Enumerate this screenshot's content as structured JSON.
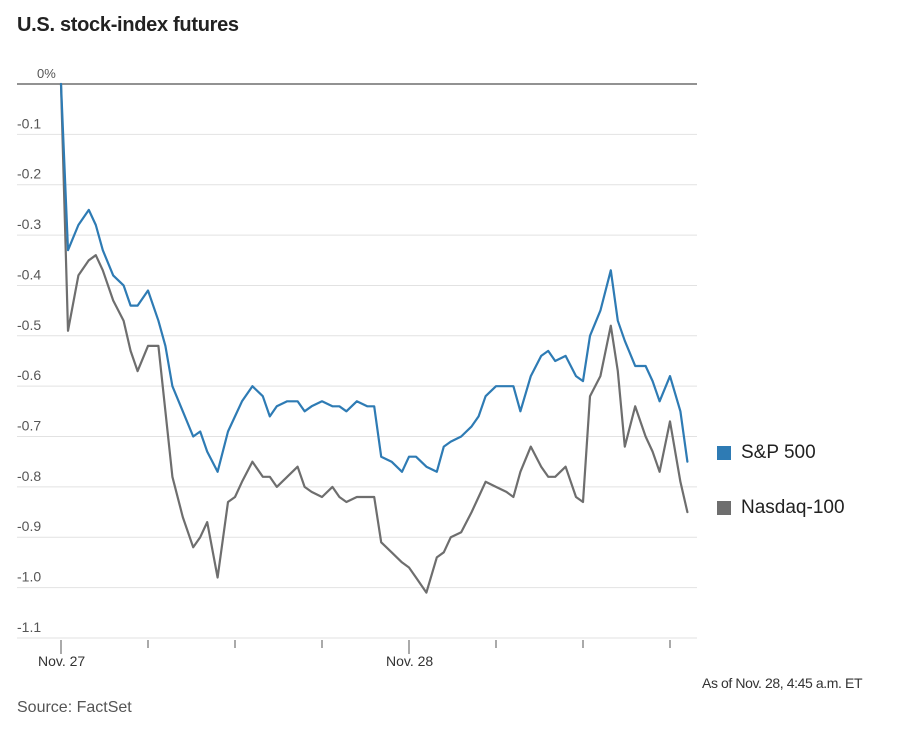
{
  "header": {
    "title": "U.S. stock-index futures"
  },
  "footer": {
    "as_of": "As of Nov. 28, 4:45 a.m. ET",
    "source": "Source: FactSet"
  },
  "chart_data": {
    "type": "line",
    "title": "U.S. stock-index futures",
    "xlabel": "",
    "ylabel": "",
    "ylim": [
      -1.1,
      0
    ],
    "y_ticks": [
      "0%",
      "-0.1",
      "-0.2",
      "-0.3",
      "-0.4",
      "-0.5",
      "-0.6",
      "-0.7",
      "-0.8",
      "-0.9",
      "-1.0",
      "-1.1"
    ],
    "x_ticks": [
      "Nov. 27",
      "Nov. 28"
    ],
    "grid": true,
    "legend_position": "right",
    "colors": {
      "sp500": "#2e7bb4",
      "nasdaq": "#6e6e6e",
      "zero_line": "#6e6e6e",
      "grid": "#e2e2e2"
    },
    "x": [
      0,
      0.02,
      0.05,
      0.08,
      0.1,
      0.12,
      0.15,
      0.18,
      0.2,
      0.22,
      0.25,
      0.28,
      0.3,
      0.32,
      0.35,
      0.38,
      0.4,
      0.42,
      0.45,
      0.48,
      0.5,
      0.52,
      0.55,
      0.58,
      0.6,
      0.62,
      0.65,
      0.68,
      0.7,
      0.72,
      0.75,
      0.78,
      0.8,
      0.82,
      0.85,
      0.88,
      0.9,
      0.92,
      0.95,
      0.98,
      1.0,
      1.02,
      1.05,
      1.08,
      1.1,
      1.12,
      1.15,
      1.18,
      1.2,
      1.22,
      1.25,
      1.28,
      1.3,
      1.32,
      1.35,
      1.38,
      1.4,
      1.42,
      1.45,
      1.48,
      1.5,
      1.52,
      1.55,
      1.58,
      1.6,
      1.62,
      1.65,
      1.68,
      1.7,
      1.72,
      1.75,
      1.78,
      1.8
    ],
    "series": [
      {
        "name": "S&P 500",
        "values": [
          0.0,
          -0.33,
          -0.28,
          -0.25,
          -0.28,
          -0.33,
          -0.38,
          -0.4,
          -0.44,
          -0.44,
          -0.41,
          -0.47,
          -0.52,
          -0.6,
          -0.65,
          -0.7,
          -0.69,
          -0.73,
          -0.77,
          -0.69,
          -0.66,
          -0.63,
          -0.6,
          -0.62,
          -0.66,
          -0.64,
          -0.63,
          -0.63,
          -0.65,
          -0.64,
          -0.63,
          -0.64,
          -0.64,
          -0.65,
          -0.63,
          -0.64,
          -0.64,
          -0.74,
          -0.75,
          -0.77,
          -0.74,
          -0.74,
          -0.76,
          -0.77,
          -0.72,
          -0.71,
          -0.7,
          -0.68,
          -0.66,
          -0.62,
          -0.6,
          -0.6,
          -0.6,
          -0.65,
          -0.58,
          -0.54,
          -0.53,
          -0.55,
          -0.54,
          -0.58,
          -0.59,
          -0.5,
          -0.45,
          -0.37,
          -0.47,
          -0.51,
          -0.56,
          -0.56,
          -0.59,
          -0.63,
          -0.58,
          -0.65,
          -0.75
        ]
      },
      {
        "name": "Nasdaq-100",
        "values": [
          0.0,
          -0.49,
          -0.38,
          -0.35,
          -0.34,
          -0.37,
          -0.43,
          -0.47,
          -0.53,
          -0.57,
          -0.52,
          -0.52,
          -0.65,
          -0.78,
          -0.86,
          -0.92,
          -0.9,
          -0.87,
          -0.98,
          -0.83,
          -0.82,
          -0.79,
          -0.75,
          -0.78,
          -0.78,
          -0.8,
          -0.78,
          -0.76,
          -0.8,
          -0.81,
          -0.82,
          -0.8,
          -0.82,
          -0.83,
          -0.82,
          -0.82,
          -0.82,
          -0.91,
          -0.93,
          -0.95,
          -0.96,
          -0.98,
          -1.01,
          -0.94,
          -0.93,
          -0.9,
          -0.89,
          -0.85,
          -0.82,
          -0.79,
          -0.8,
          -0.81,
          -0.82,
          -0.77,
          -0.72,
          -0.76,
          -0.78,
          -0.78,
          -0.76,
          -0.82,
          -0.83,
          -0.62,
          -0.58,
          -0.48,
          -0.57,
          -0.72,
          -0.64,
          -0.7,
          -0.73,
          -0.77,
          -0.67,
          -0.79,
          -0.85
        ]
      }
    ]
  }
}
